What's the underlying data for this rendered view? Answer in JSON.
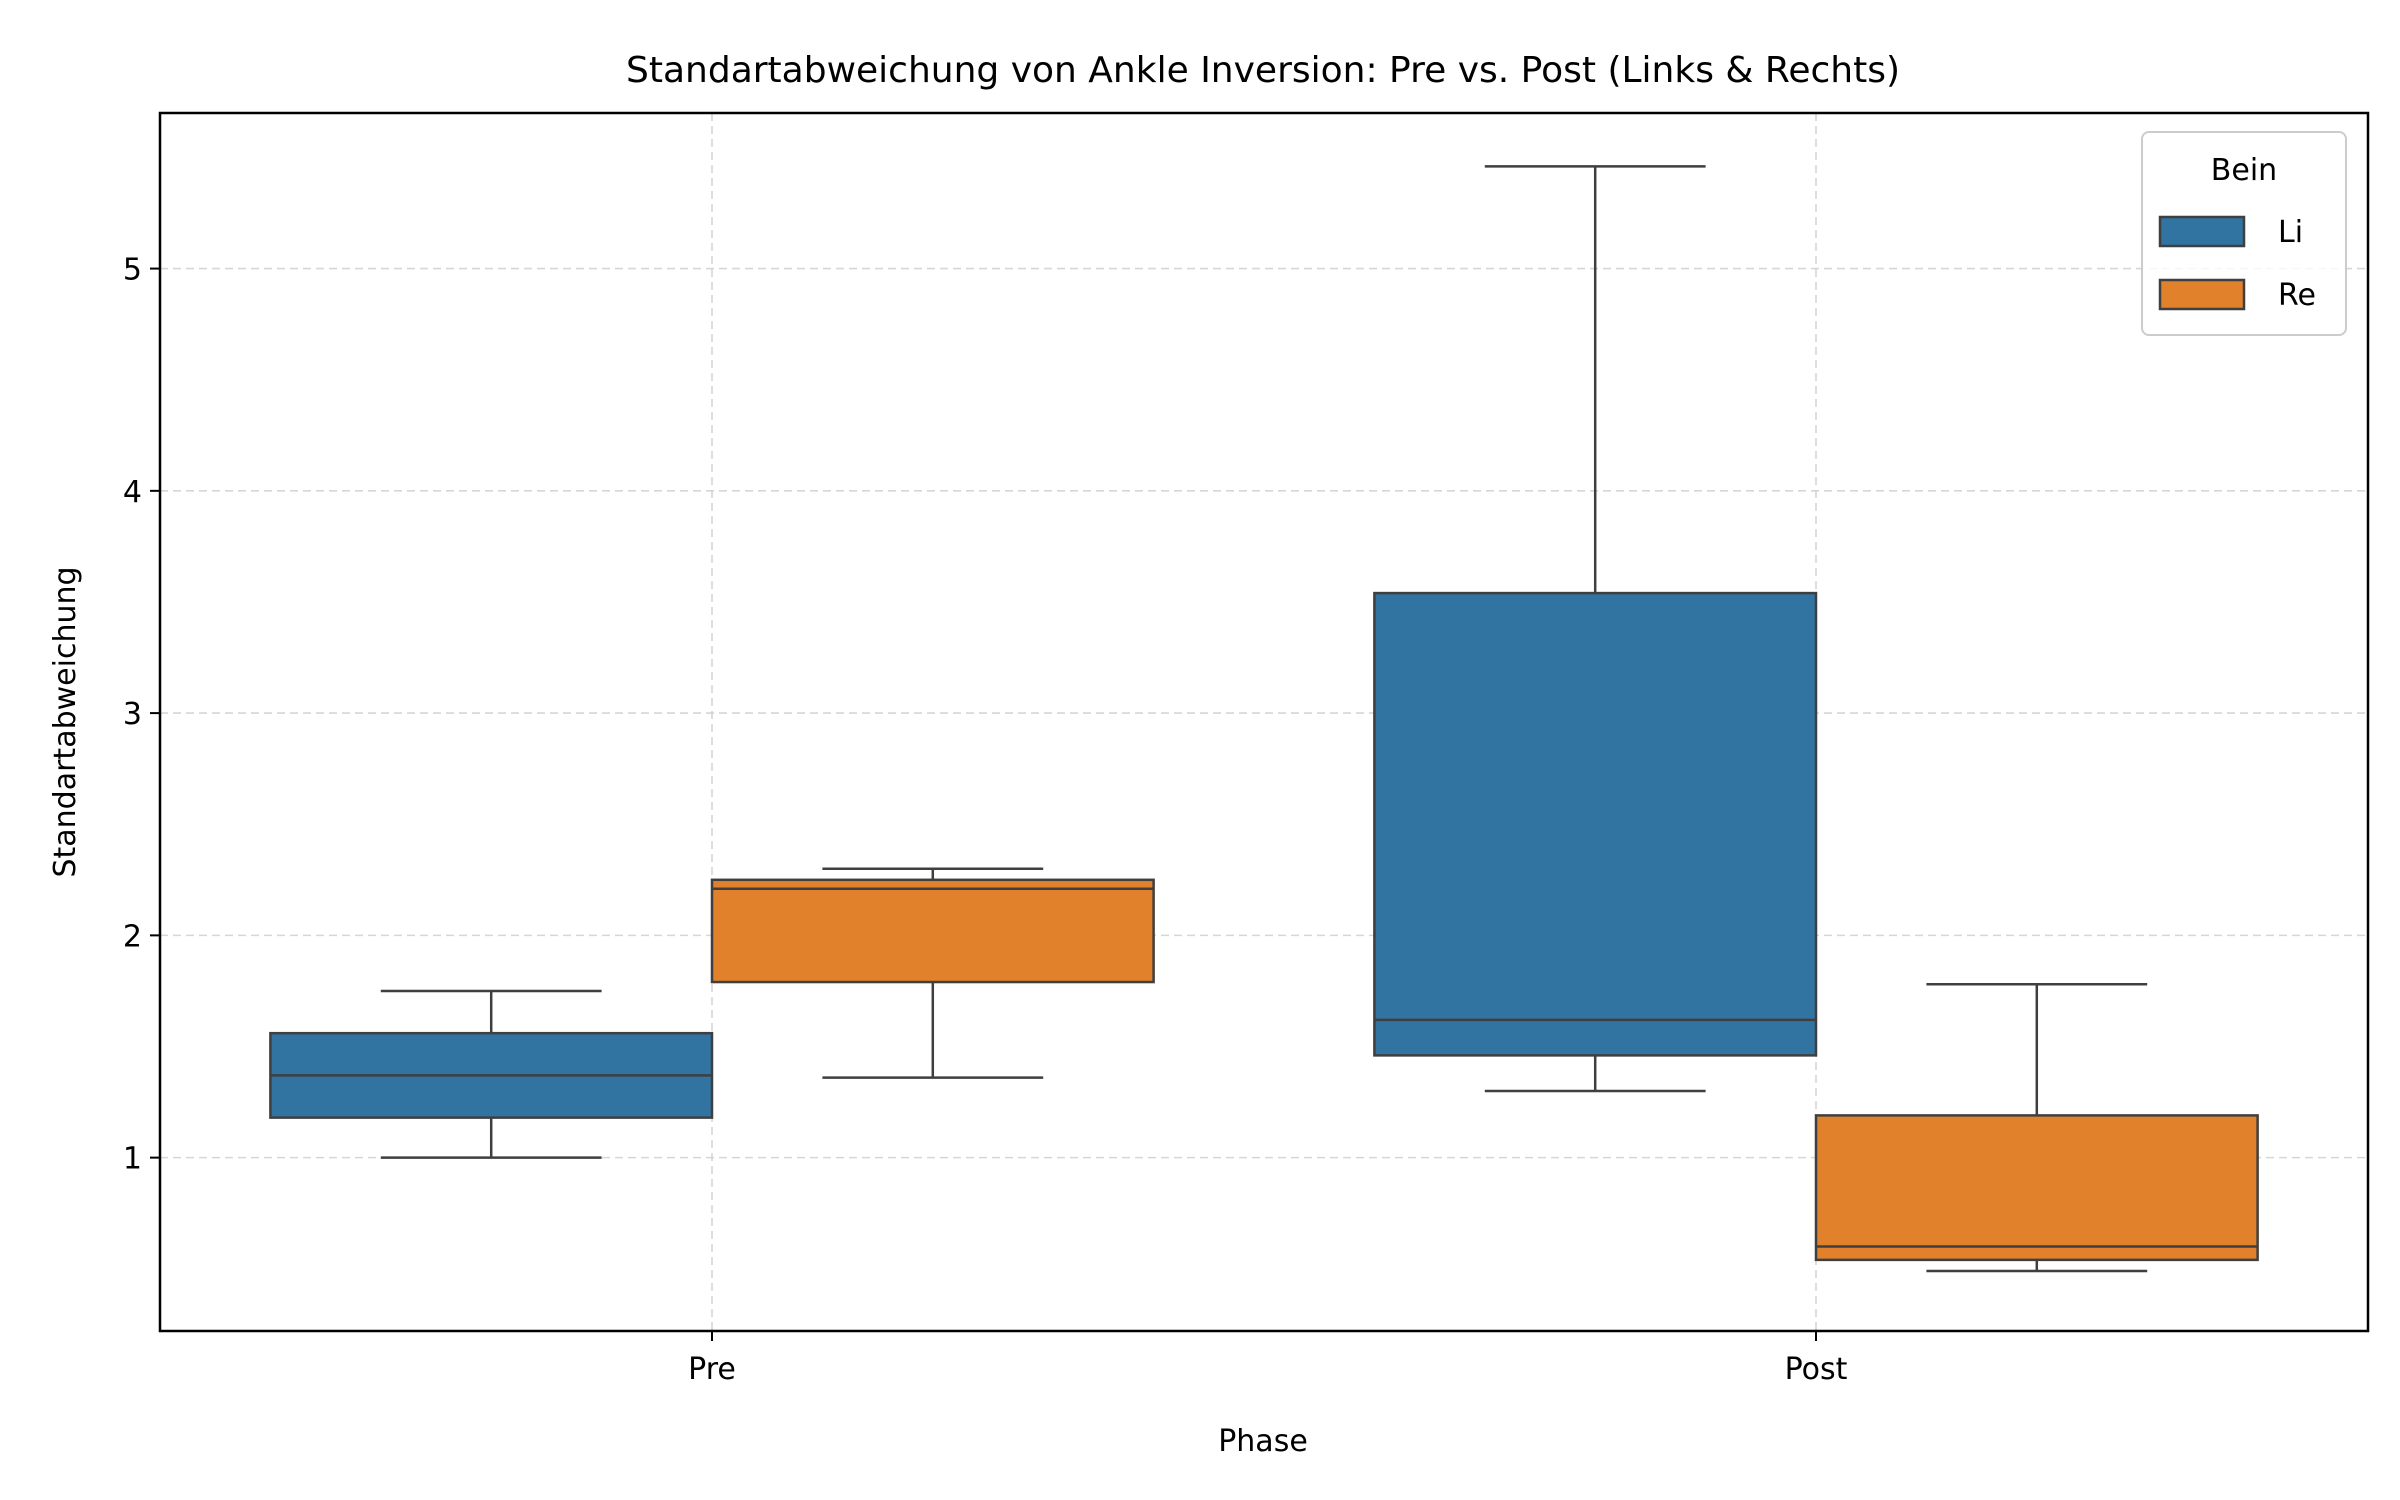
{
  "chart_data": {
    "type": "box",
    "title": "Standartabweichung von Ankle Inversion: Pre vs. Post (Links & Rechts)",
    "xlabel": "Phase",
    "ylabel": "Standartabweichung",
    "categories": [
      "Pre",
      "Post"
    ],
    "ylim": [
      0.22,
      5.7
    ],
    "yticks": [
      1,
      2,
      3,
      4,
      5
    ],
    "grid": true,
    "legend": {
      "title": "Bein",
      "placement": "top-right"
    },
    "series": [
      {
        "name": "Li",
        "color": "#3274a1",
        "boxes": [
          {
            "category": "Pre",
            "whisker_low": 1.0,
            "q1": 1.18,
            "median": 1.37,
            "q3": 1.56,
            "whisker_high": 1.75
          },
          {
            "category": "Post",
            "whisker_low": 1.3,
            "q1": 1.46,
            "median": 1.62,
            "q3": 3.54,
            "whisker_high": 5.46
          }
        ]
      },
      {
        "name": "Re",
        "color": "#e1812c",
        "boxes": [
          {
            "category": "Pre",
            "whisker_low": 1.36,
            "q1": 1.79,
            "median": 2.21,
            "q3": 2.25,
            "whisker_high": 2.3
          },
          {
            "category": "Post",
            "whisker_low": 0.49,
            "q1": 0.54,
            "median": 0.6,
            "q3": 1.19,
            "whisker_high": 1.78
          }
        ]
      }
    ]
  }
}
